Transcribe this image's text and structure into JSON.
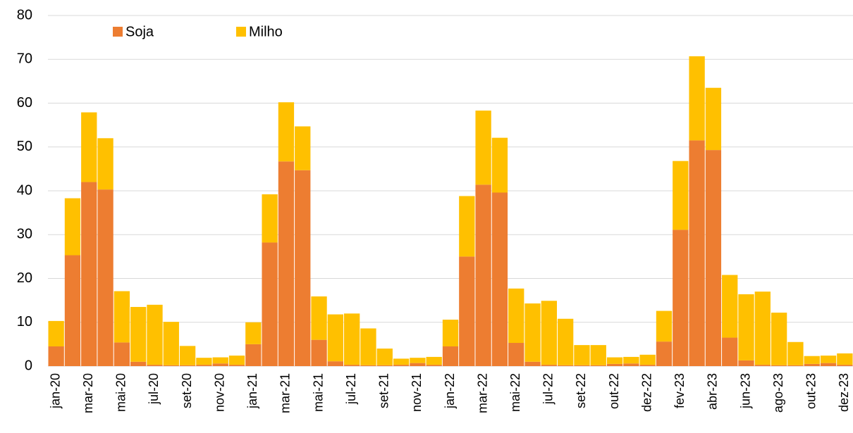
{
  "chart_data": {
    "type": "stacked_bar",
    "categories": [
      "jan-20",
      null,
      "mar-20",
      null,
      "mai-20",
      null,
      "jul-20",
      null,
      "set-20",
      null,
      "nov-20",
      null,
      "jan-21",
      null,
      "mar-21",
      null,
      "mai-21",
      null,
      "jul-21",
      null,
      "set-21",
      null,
      "nov-21",
      null,
      "jan-22",
      null,
      "mar-22",
      null,
      "mai-22",
      null,
      "jul-22",
      null,
      "set-22",
      null,
      "out-22",
      null,
      "dez-22",
      null,
      "fev-23",
      null,
      "abr-23",
      null,
      "jun-23",
      null,
      "ago-23",
      null,
      "out-23",
      null,
      "dez-23"
    ],
    "series": [
      {
        "name": "Soja",
        "color": "#ED7D31",
        "values": [
          4.5,
          25.3,
          42,
          40.3,
          5.4,
          1,
          0.3,
          0.2,
          0.2,
          0.3,
          0.6,
          0.3,
          5,
          28.2,
          46.7,
          44.7,
          6,
          1.1,
          0.3,
          0.2,
          0.2,
          0.3,
          0.7,
          0.3,
          4.5,
          25,
          41.4,
          39.6,
          5.3,
          1,
          0.3,
          0.2,
          0.2,
          0.2,
          0.5,
          0.6,
          0.3,
          5.6,
          31.1,
          51.5,
          49.3,
          6.5,
          1.3,
          0.3,
          0.2,
          0.2,
          0.5,
          0.7,
          0.3
        ]
      },
      {
        "name": "Milho",
        "color": "#FFC000",
        "values": [
          5.8,
          13,
          15.9,
          11.7,
          11.7,
          12.5,
          13.7,
          9.9,
          4.4,
          1.6,
          1.4,
          2.1,
          5,
          11,
          13.5,
          10,
          9.9,
          10.7,
          11.7,
          8.4,
          3.8,
          1.4,
          1.2,
          1.8,
          6.1,
          13.8,
          16.9,
          12.5,
          12.4,
          13.3,
          14.6,
          10.6,
          4.6,
          4.6,
          1.5,
          1.5,
          2.3,
          7,
          15.7,
          19.2,
          14.2,
          14.3,
          15.1,
          16.7,
          12,
          5.3,
          1.8,
          1.7,
          2.6
        ]
      }
    ],
    "ylim": [
      0,
      80
    ],
    "yticks": [
      0,
      10,
      20,
      30,
      40,
      50,
      60,
      70,
      80
    ],
    "grid": true,
    "legend": "top-left"
  }
}
